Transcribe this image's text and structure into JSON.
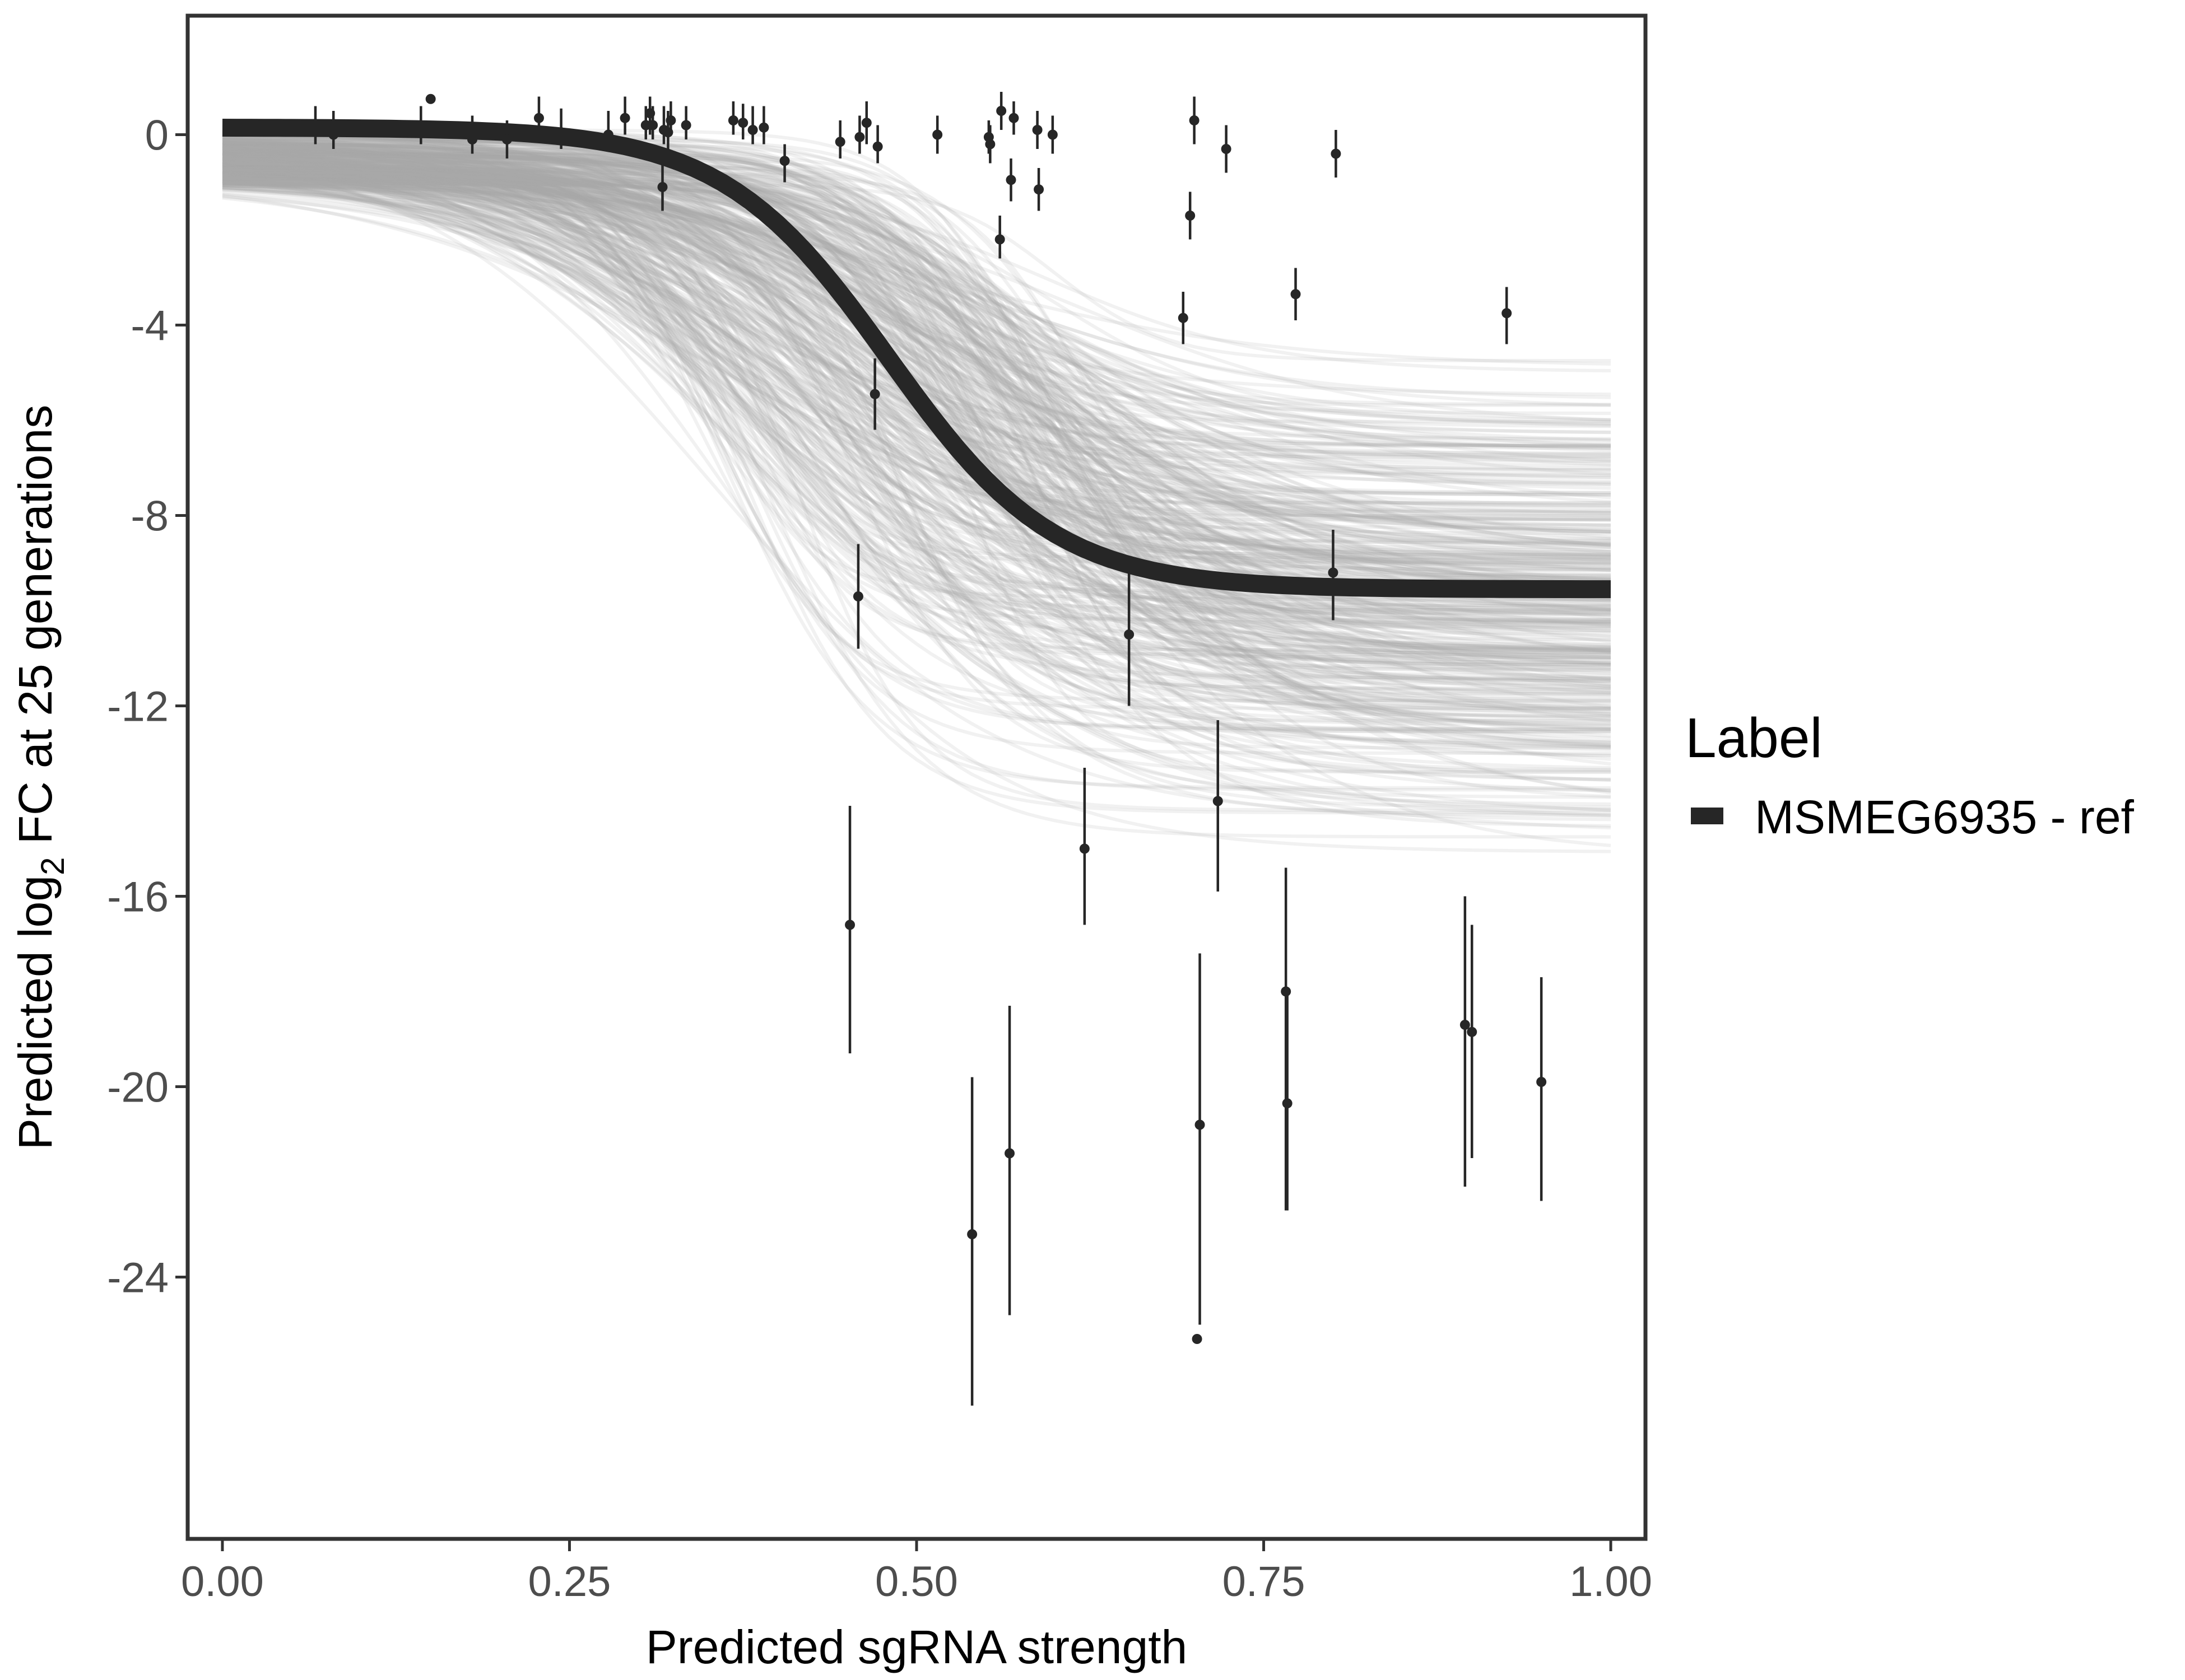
{
  "chart_data": {
    "type": "line",
    "title": "",
    "xlabel": "Predicted sgRNA strength",
    "ylabel_parts": [
      "Predicted  log",
      "2",
      " FC at 25 generations"
    ],
    "xlim": [
      -0.025,
      1.025
    ],
    "ylim": [
      -29.5,
      2.5
    ],
    "x_ticks": [
      0,
      0.25,
      0.5,
      0.75,
      1
    ],
    "x_tick_labels": [
      "0.00",
      "0.25",
      "0.50",
      "0.75",
      "1.00"
    ],
    "y_ticks": [
      0,
      -4,
      -8,
      -12,
      -16,
      -20,
      -24
    ],
    "y_tick_labels": [
      "0",
      "-4",
      "-8",
      "-12",
      "-16",
      "-20",
      "-24"
    ],
    "grid": false,
    "legend": {
      "title": "Label",
      "placement": "right",
      "entries": [
        {
          "label": "MSMEG6935 - ref",
          "color": "#262626"
        }
      ]
    },
    "reference_curve": {
      "name": "MSMEG6935 - ref",
      "color": "#262626",
      "model": "logistic",
      "upper": 0.15,
      "lower": -9.55,
      "midpoint": 0.48,
      "scale": 0.06
    },
    "posterior_draws": {
      "count": 400,
      "color": "#a6a6a6",
      "lower_range": [
        -15.0,
        -5.0
      ],
      "midpoint_range": [
        0.34,
        0.62
      ],
      "scale_range": [
        0.04,
        0.13
      ]
    },
    "points": [
      {
        "x": 0.067,
        "y": 0.1,
        "lo": -0.2,
        "hi": 0.6
      },
      {
        "x": 0.08,
        "y": 0.0,
        "lo": -0.3,
        "hi": 0.5
      },
      {
        "x": 0.143,
        "y": 0.1,
        "lo": -0.2,
        "hi": 0.6
      },
      {
        "x": 0.15,
        "y": 0.75
      },
      {
        "x": 0.18,
        "y": -0.1,
        "lo": -0.4,
        "hi": 0.4
      },
      {
        "x": 0.205,
        "y": -0.1,
        "lo": -0.5,
        "hi": 0.3
      },
      {
        "x": 0.228,
        "y": 0.35,
        "lo": 0.0,
        "hi": 0.8
      },
      {
        "x": 0.244,
        "y": 0.05,
        "lo": -0.3,
        "hi": 0.55
      },
      {
        "x": 0.278,
        "y": 0.0,
        "lo": -0.3,
        "hi": 0.5
      },
      {
        "x": 0.29,
        "y": 0.35,
        "lo": 0.0,
        "hi": 0.8
      },
      {
        "x": 0.305,
        "y": 0.2,
        "lo": -0.1,
        "hi": 0.6
      },
      {
        "x": 0.308,
        "y": 0.45,
        "lo": 0.0,
        "hi": 0.8
      },
      {
        "x": 0.31,
        "y": 0.2,
        "lo": -0.1,
        "hi": 0.6
      },
      {
        "x": 0.317,
        "y": -1.1,
        "lo": -1.6,
        "hi": -0.6
      },
      {
        "x": 0.318,
        "y": 0.1,
        "lo": -0.2,
        "hi": 0.6
      },
      {
        "x": 0.321,
        "y": 0.05,
        "lo": -0.3,
        "hi": 0.5
      },
      {
        "x": 0.323,
        "y": 0.3,
        "lo": 0.0,
        "hi": 0.7
      },
      {
        "x": 0.334,
        "y": 0.2,
        "lo": -0.1,
        "hi": 0.6
      },
      {
        "x": 0.368,
        "y": 0.3,
        "lo": 0.0,
        "hi": 0.7
      },
      {
        "x": 0.375,
        "y": 0.25,
        "lo": -0.1,
        "hi": 0.65
      },
      {
        "x": 0.382,
        "y": 0.1,
        "lo": -0.2,
        "hi": 0.6
      },
      {
        "x": 0.39,
        "y": 0.15,
        "lo": -0.2,
        "hi": 0.6
      },
      {
        "x": 0.405,
        "y": -0.55,
        "lo": -1.0,
        "hi": -0.2
      },
      {
        "x": 0.445,
        "y": -0.15,
        "lo": -0.5,
        "hi": 0.3
      },
      {
        "x": 0.452,
        "y": -16.6,
        "lo": -19.3,
        "hi": -14.1
      },
      {
        "x": 0.458,
        "y": -9.7,
        "lo": -10.8,
        "hi": -8.6
      },
      {
        "x": 0.459,
        "y": -0.05,
        "lo": -0.4,
        "hi": 0.4
      },
      {
        "x": 0.464,
        "y": 0.25,
        "lo": -0.2,
        "hi": 0.7
      },
      {
        "x": 0.47,
        "y": -5.45,
        "lo": -6.2,
        "hi": -4.7
      },
      {
        "x": 0.472,
        "y": -0.25,
        "lo": -0.6,
        "hi": 0.2
      },
      {
        "x": 0.515,
        "y": 0.0,
        "lo": -0.4,
        "hi": 0.4
      },
      {
        "x": 0.54,
        "y": -23.1,
        "lo": -26.7,
        "hi": -19.8
      },
      {
        "x": 0.552,
        "y": -0.05,
        "lo": -0.4,
        "hi": 0.3
      },
      {
        "x": 0.553,
        "y": -0.2,
        "lo": -0.6,
        "hi": 0.2
      },
      {
        "x": 0.56,
        "y": -2.2,
        "lo": -2.6,
        "hi": -1.7
      },
      {
        "x": 0.561,
        "y": 0.5,
        "lo": 0.1,
        "hi": 0.9
      },
      {
        "x": 0.567,
        "y": -21.4,
        "lo": -24.8,
        "hi": -18.3
      },
      {
        "x": 0.568,
        "y": -0.95,
        "lo": -1.4,
        "hi": -0.5
      },
      {
        "x": 0.57,
        "y": 0.35,
        "lo": 0.0,
        "hi": 0.7
      },
      {
        "x": 0.587,
        "y": 0.1,
        "lo": -0.3,
        "hi": 0.5
      },
      {
        "x": 0.588,
        "y": -1.15,
        "lo": -1.6,
        "hi": -0.7
      },
      {
        "x": 0.598,
        "y": 0.0,
        "lo": -0.4,
        "hi": 0.4
      },
      {
        "x": 0.621,
        "y": -15.0,
        "lo": -16.6,
        "hi": -13.3
      },
      {
        "x": 0.653,
        "y": -10.5,
        "lo": -12.0,
        "hi": -9.1
      },
      {
        "x": 0.692,
        "y": -3.85,
        "lo": -4.4,
        "hi": -3.3
      },
      {
        "x": 0.697,
        "y": -1.7,
        "lo": -2.2,
        "hi": -1.2
      },
      {
        "x": 0.7,
        "y": 0.3,
        "lo": -0.2,
        "hi": 0.8
      },
      {
        "x": 0.702,
        "y": -25.3
      },
      {
        "x": 0.704,
        "y": -20.8,
        "lo": -25.0,
        "hi": -17.2
      },
      {
        "x": 0.717,
        "y": -14.0,
        "lo": -15.9,
        "hi": -12.3
      },
      {
        "x": 0.723,
        "y": -0.3,
        "lo": -0.8,
        "hi": 0.2
      },
      {
        "x": 0.766,
        "y": -18.0,
        "lo": -22.6,
        "hi": -15.4
      },
      {
        "x": 0.767,
        "y": -20.35,
        "lo": -22.6,
        "hi": -18.0
      },
      {
        "x": 0.773,
        "y": -3.35,
        "lo": -3.9,
        "hi": -2.8
      },
      {
        "x": 0.8,
        "y": -9.2,
        "lo": -10.2,
        "hi": -8.3
      },
      {
        "x": 0.802,
        "y": -0.4,
        "lo": -0.9,
        "hi": 0.1
      },
      {
        "x": 0.895,
        "y": -18.7,
        "lo": -22.1,
        "hi": -16.0
      },
      {
        "x": 0.9,
        "y": -18.85,
        "lo": -21.5,
        "hi": -16.6
      },
      {
        "x": 0.925,
        "y": -3.75,
        "lo": -4.4,
        "hi": -3.2
      },
      {
        "x": 0.95,
        "y": -19.9,
        "lo": -22.4,
        "hi": -17.7
      }
    ]
  }
}
